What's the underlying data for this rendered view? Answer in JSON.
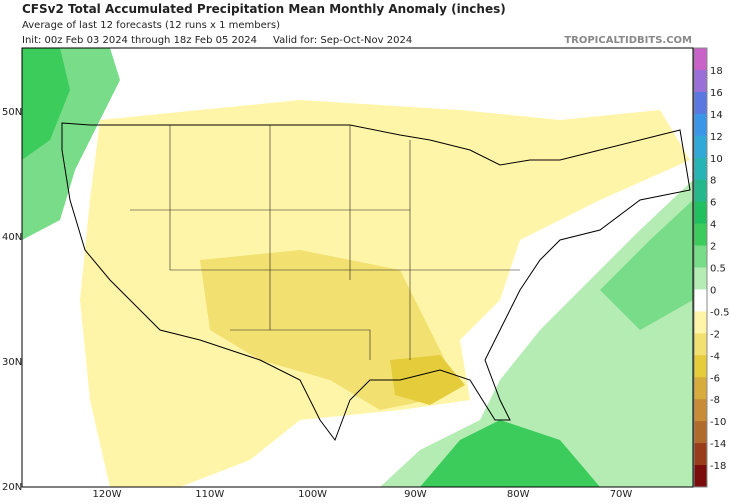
{
  "header": {
    "title": "CFSv2 Total Accumulated Precipitation Mean Monthly Anomaly (inches)",
    "subtitle": "Average of last 12 forecasts (12 runs x 1 members)",
    "init": "Init: 00z Feb 03 2024 through 18z Feb 05 2024",
    "valid": "Valid for: Sep-Oct-Nov 2024",
    "site": "TROPICALTIDBITS.COM"
  },
  "map": {
    "lat_labels": [
      "50N",
      "40N",
      "30N",
      "20N"
    ],
    "lon_labels": [
      "120W",
      "110W",
      "100W",
      "90W",
      "80W",
      "70W"
    ]
  },
  "colorbar": {
    "labels": [
      18,
      16,
      14,
      12,
      10,
      8,
      6,
      4,
      2,
      0.5,
      0,
      -0.5,
      -2,
      -4,
      -6,
      -8,
      -10,
      -14,
      -18
    ],
    "colors": [
      "#c862c8",
      "#9a6fd8",
      "#5a78e0",
      "#3c96e8",
      "#30a8d8",
      "#28b4b4",
      "#24b88c",
      "#20c060",
      "#3ccc5c",
      "#78dc88",
      "#b4ecb4",
      "#ffffff",
      "#fff5a8",
      "#f2e070",
      "#e4cc3a",
      "#d8ac3c",
      "#c88c38",
      "#b06a2c",
      "#983c1c",
      "#7a0c0c"
    ]
  }
}
